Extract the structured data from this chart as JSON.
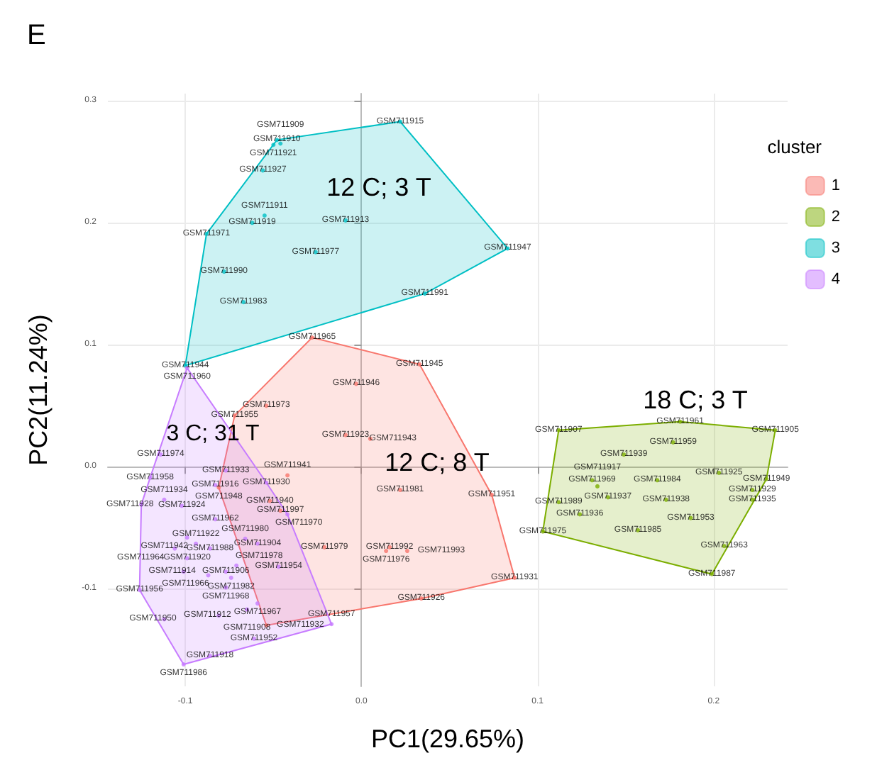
{
  "chart_data": {
    "type": "scatter",
    "title": "E",
    "xlabel": "PC1(29.65%)",
    "ylabel": "PC2(11.24%)",
    "legend_title": "cluster",
    "legend": "right",
    "grid": true,
    "marker": "circle",
    "xlim": [
      -0.144,
      0.242
    ],
    "xticks": [
      -0.1,
      {
        "value": 0,
        "label": "0.0"
      },
      0.1,
      0.2
    ],
    "ylim": [
      -0.18,
      0.306
    ],
    "yticks": [
      -0.1,
      {
        "value": 0,
        "label": "0.0"
      },
      0.1,
      0.2,
      0.3
    ],
    "annotations": [
      "12 C; 3 T",
      "12 C; 8 T",
      "18 C; 3 T",
      "3 C; 31 T"
    ],
    "series": [
      {
        "name": "1",
        "color": "#f8766d",
        "x": [
          -0.028,
          0.033,
          -0.003,
          -0.054,
          -0.072,
          -0.009,
          0.005,
          -0.042,
          0.022,
          0.074,
          -0.052,
          -0.046,
          -0.021,
          0.016,
          0.014,
          0.026,
          0.087,
          0.034,
          -0.054,
          -0.081
        ],
        "values": [
          0.106,
          0.084,
          0.068,
          0.05,
          0.042,
          0.026,
          0.023,
          -0.007,
          -0.019,
          -0.023,
          -0.028,
          -0.036,
          -0.066,
          -0.066,
          -0.069,
          -0.069,
          -0.091,
          -0.108,
          -0.13,
          -0.017
        ],
        "value_labels": [
          "GSM711965",
          "GSM711945",
          "GSM711946",
          "GSM711973",
          "GSM711955",
          "GSM711923",
          "GSM711943",
          "GSM711941",
          "GSM711981",
          "GSM711951",
          "GSM711940",
          "GSM711997",
          "GSM711979",
          "GSM711992",
          "GSM711976",
          "GSM711993",
          "GSM711931",
          "GSM711926",
          "GSM711932",
          "GSM711948"
        ]
      },
      {
        "name": "2",
        "color": "#7cae00",
        "x": [
          0.112,
          0.181,
          0.235,
          0.177,
          0.149,
          0.203,
          0.23,
          0.168,
          0.131,
          0.134,
          0.222,
          0.14,
          0.173,
          0.222,
          0.112,
          0.124,
          0.187,
          0.103,
          0.157,
          0.206,
          0.199
        ],
        "values": [
          0.03,
          0.037,
          0.03,
          0.02,
          0.01,
          -0.005,
          -0.01,
          -0.011,
          -0.011,
          -0.016,
          -0.019,
          -0.025,
          -0.027,
          -0.027,
          -0.029,
          -0.039,
          -0.042,
          -0.053,
          -0.052,
          -0.065,
          -0.088
        ],
        "value_labels": [
          "GSM711907",
          "GSM711961",
          "GSM711905",
          "GSM711959",
          "GSM711939",
          "GSM711925",
          "GSM711949",
          "GSM711984",
          "GSM711969",
          "GSM711917",
          "GSM711929",
          "GSM711937",
          "GSM711938",
          "GSM711935",
          "GSM711989",
          "GSM711936",
          "GSM711953",
          "GSM711975",
          "GSM711985",
          "GSM711963",
          "GSM711987"
        ]
      },
      {
        "name": "3",
        "color": "#00bfc4",
        "x": [
          0.022,
          -0.048,
          -0.05,
          -0.046,
          -0.056,
          -0.055,
          -0.062,
          -0.009,
          -0.088,
          -0.026,
          -0.078,
          -0.067,
          0.036,
          0.083,
          -0.1
        ],
        "values": [
          0.283,
          0.268,
          0.264,
          0.265,
          0.243,
          0.206,
          0.2,
          0.202,
          0.191,
          0.176,
          0.16,
          0.135,
          0.142,
          0.179,
          0.083
        ],
        "value_labels": [
          "GSM711915",
          "GSM711910",
          "GSM711921",
          "GSM711909",
          "GSM711927",
          "GSM711911",
          "GSM711919",
          "GSM711913",
          "GSM711971",
          "GSM711977",
          "GSM711990",
          "GSM711983",
          "GSM711991",
          "GSM711947",
          "GSM711944"
        ]
      },
      {
        "name": "4",
        "color": "#c77cff",
        "x": [
          -0.099,
          -0.114,
          -0.12,
          -0.077,
          -0.054,
          -0.083,
          -0.112,
          -0.125,
          -0.102,
          -0.083,
          -0.042,
          -0.099,
          -0.066,
          -0.059,
          -0.086,
          -0.099,
          -0.106,
          -0.047,
          -0.101,
          -0.071,
          -0.074,
          -0.087,
          -0.077,
          -0.126,
          -0.059,
          -0.065,
          -0.081,
          -0.017,
          -0.061,
          -0.086,
          -0.101,
          -0.077,
          -0.094,
          -0.112
        ],
        "values": [
          0.081,
          0.01,
          -0.009,
          -0.003,
          -0.013,
          -0.015,
          -0.027,
          -0.031,
          -0.032,
          -0.043,
          -0.039,
          -0.058,
          -0.059,
          -0.063,
          -0.067,
          -0.075,
          -0.067,
          -0.082,
          -0.086,
          -0.081,
          -0.091,
          -0.089,
          -0.099,
          -0.101,
          -0.112,
          -0.117,
          -0.122,
          -0.129,
          -0.141,
          -0.155,
          -0.162,
          -0.086,
          -0.063,
          -0.125
        ],
        "value_labels": [
          "GSM711960",
          "GSM711974",
          "GSM711958",
          "GSM711933",
          "GSM711930",
          "GSM711916",
          "GSM711934",
          "GSM711928",
          "GSM711924",
          "GSM711962",
          "GSM711970",
          "GSM711942",
          "GSM711980",
          "GSM711904",
          "GSM711988",
          "GSM711920",
          "GSM711964",
          "GSM711954",
          "GSM711914",
          "GSM711978",
          "GSM711982",
          "GSM711966",
          "GSM711968",
          "GSM711956",
          "GSM711967",
          "GSM711908",
          "GSM711912",
          "GSM711957",
          "GSM711952",
          "GSM711918",
          "GSM711986",
          "GSM711906",
          "GSM711922",
          "GSM711950"
        ]
      }
    ]
  }
}
